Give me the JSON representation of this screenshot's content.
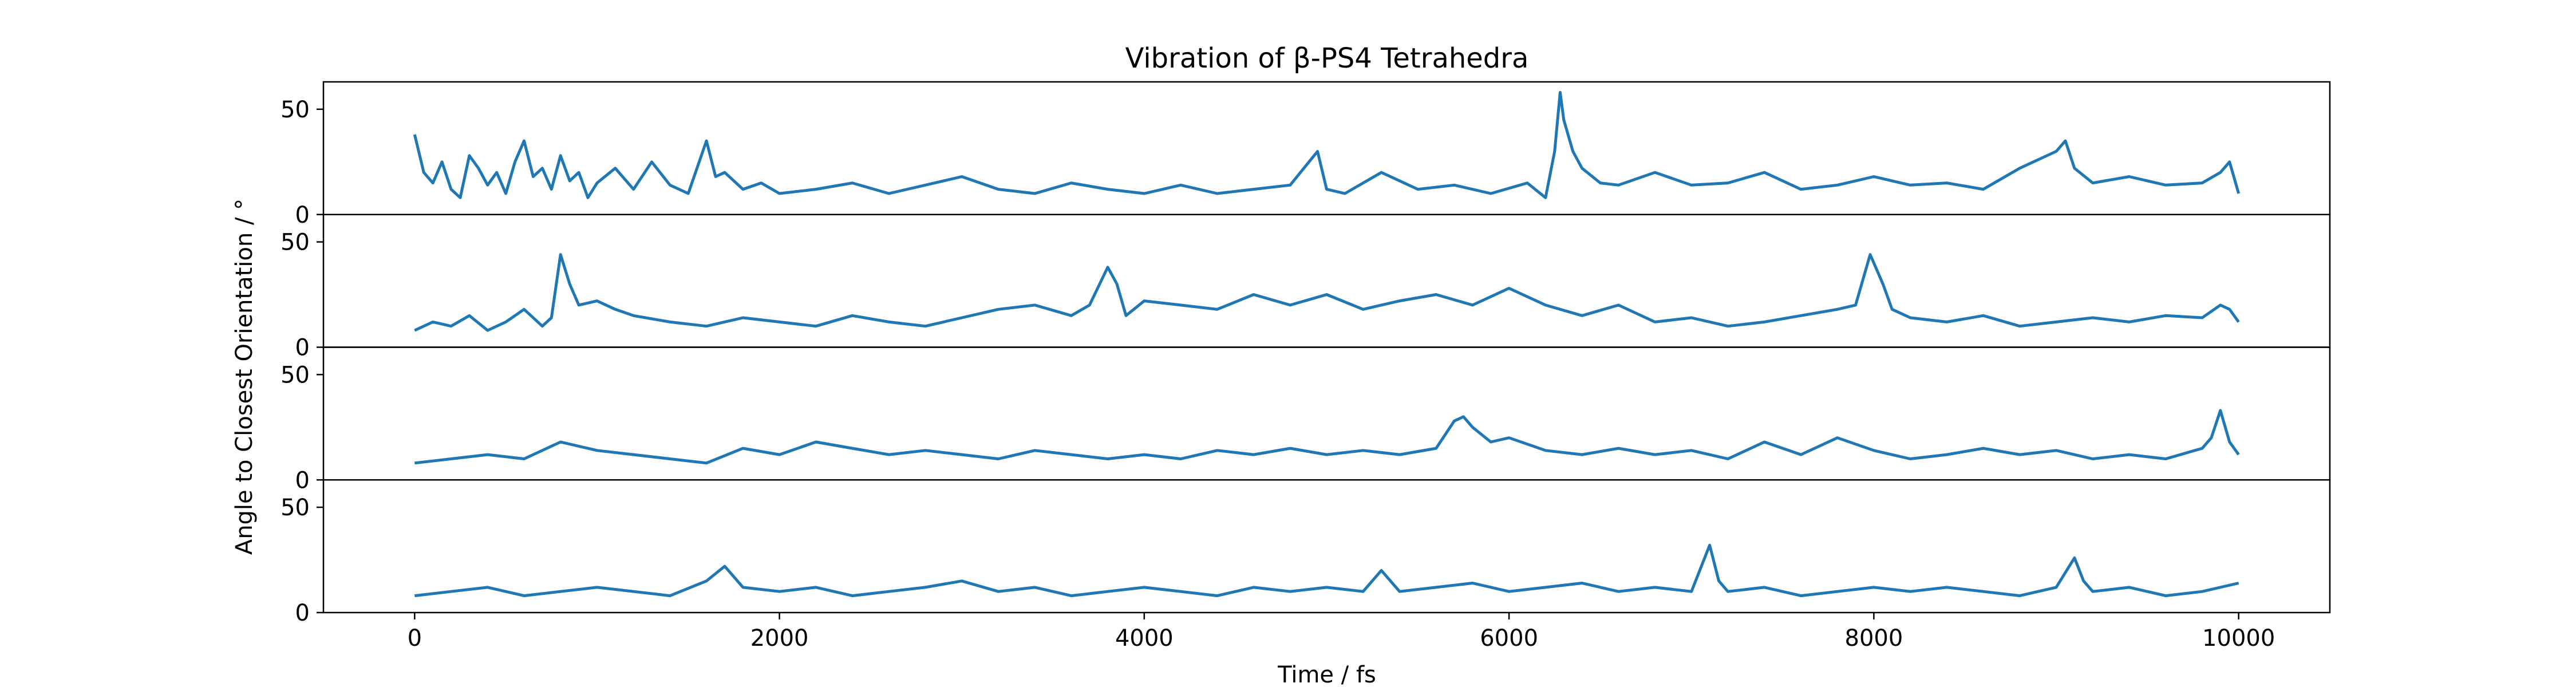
{
  "chart_data": {
    "type": "line",
    "title": "Vibration of β-PS4 Tetrahedra",
    "xlabel": "Time / fs",
    "ylabel": "Angle to Closest Orientation / °",
    "xlim": [
      -500,
      10500
    ],
    "ylim": [
      0,
      63
    ],
    "x_ticks": [
      0,
      2000,
      4000,
      6000,
      8000,
      10000
    ],
    "x_tick_labels": [
      "0",
      "2000",
      "4000",
      "6000",
      "8000",
      "10000"
    ],
    "y_ticks": [
      0,
      50
    ],
    "y_tick_labels": [
      "0",
      "50"
    ],
    "grid": false,
    "line_color": "#1f77b4",
    "subplots": 4,
    "series": [
      {
        "x": [
          0,
          50,
          100,
          150,
          200,
          250,
          300,
          350,
          400,
          450,
          500,
          550,
          600,
          650,
          700,
          750,
          800,
          850,
          900,
          950,
          1000,
          1100,
          1200,
          1300,
          1400,
          1500,
          1600,
          1650,
          1700,
          1800,
          1900,
          2000,
          2200,
          2400,
          2600,
          2800,
          3000,
          3200,
          3400,
          3600,
          3800,
          4000,
          4200,
          4400,
          4600,
          4800,
          4950,
          5000,
          5100,
          5300,
          5500,
          5700,
          5900,
          6100,
          6200,
          6250,
          6280,
          6300,
          6350,
          6400,
          6500,
          6600,
          6800,
          7000,
          7200,
          7400,
          7600,
          7800,
          8000,
          8200,
          8400,
          8600,
          8800,
          9000,
          9050,
          9100,
          9200,
          9400,
          9600,
          9800,
          9900,
          9950,
          10000
        ],
        "values": [
          38,
          20,
          15,
          25,
          12,
          8,
          28,
          22,
          14,
          20,
          10,
          25,
          35,
          18,
          22,
          12,
          28,
          16,
          20,
          8,
          15,
          22,
          12,
          25,
          14,
          10,
          35,
          18,
          20,
          12,
          15,
          10,
          12,
          15,
          10,
          14,
          18,
          12,
          10,
          15,
          12,
          10,
          14,
          10,
          12,
          14,
          30,
          12,
          10,
          20,
          12,
          14,
          10,
          15,
          8,
          30,
          58,
          45,
          30,
          22,
          15,
          14,
          20,
          14,
          15,
          20,
          12,
          14,
          18,
          14,
          15,
          12,
          22,
          30,
          35,
          22,
          15,
          18,
          14,
          15,
          20,
          25,
          10
        ]
      },
      {
        "x": [
          0,
          100,
          200,
          300,
          400,
          500,
          600,
          700,
          750,
          800,
          850,
          900,
          1000,
          1100,
          1200,
          1400,
          1600,
          1800,
          2000,
          2200,
          2400,
          2600,
          2800,
          3000,
          3200,
          3400,
          3600,
          3700,
          3800,
          3850,
          3900,
          4000,
          4200,
          4400,
          4600,
          4800,
          5000,
          5200,
          5400,
          5600,
          5800,
          6000,
          6200,
          6400,
          6600,
          6800,
          7000,
          7200,
          7400,
          7600,
          7800,
          7900,
          7980,
          8050,
          8100,
          8200,
          8400,
          8600,
          8800,
          9000,
          9200,
          9400,
          9600,
          9800,
          9900,
          9950,
          10000
        ],
        "values": [
          8,
          12,
          10,
          15,
          8,
          12,
          18,
          10,
          14,
          44,
          30,
          20,
          22,
          18,
          15,
          12,
          10,
          14,
          12,
          10,
          15,
          12,
          10,
          14,
          18,
          20,
          15,
          20,
          38,
          30,
          15,
          22,
          20,
          18,
          25,
          20,
          25,
          18,
          22,
          25,
          20,
          28,
          20,
          15,
          20,
          12,
          14,
          10,
          12,
          15,
          18,
          20,
          44,
          30,
          18,
          14,
          12,
          15,
          10,
          12,
          14,
          12,
          15,
          14,
          20,
          18,
          12
        ]
      },
      {
        "x": [
          0,
          200,
          400,
          600,
          800,
          1000,
          1200,
          1400,
          1600,
          1800,
          2000,
          2200,
          2400,
          2600,
          2800,
          3000,
          3200,
          3400,
          3600,
          3800,
          4000,
          4200,
          4400,
          4600,
          4800,
          5000,
          5200,
          5400,
          5600,
          5700,
          5750,
          5800,
          5900,
          6000,
          6200,
          6400,
          6600,
          6800,
          7000,
          7200,
          7400,
          7600,
          7800,
          8000,
          8200,
          8400,
          8600,
          8800,
          9000,
          9200,
          9400,
          9600,
          9800,
          9850,
          9900,
          9950,
          10000
        ],
        "values": [
          8,
          10,
          12,
          10,
          18,
          14,
          12,
          10,
          8,
          15,
          12,
          18,
          15,
          12,
          14,
          12,
          10,
          14,
          12,
          10,
          12,
          10,
          14,
          12,
          15,
          12,
          14,
          12,
          15,
          28,
          30,
          25,
          18,
          20,
          14,
          12,
          15,
          12,
          14,
          10,
          18,
          12,
          20,
          14,
          10,
          12,
          15,
          12,
          14,
          10,
          12,
          10,
          15,
          20,
          33,
          18,
          12
        ]
      },
      {
        "x": [
          0,
          200,
          400,
          600,
          800,
          1000,
          1200,
          1400,
          1600,
          1700,
          1800,
          2000,
          2200,
          2400,
          2600,
          2800,
          3000,
          3200,
          3400,
          3600,
          3800,
          4000,
          4200,
          4400,
          4600,
          4800,
          5000,
          5200,
          5300,
          5400,
          5600,
          5800,
          6000,
          6200,
          6400,
          6600,
          6800,
          7000,
          7100,
          7150,
          7200,
          7400,
          7600,
          7800,
          8000,
          8200,
          8400,
          8600,
          8800,
          9000,
          9100,
          9150,
          9200,
          9400,
          9600,
          9800,
          10000
        ],
        "values": [
          8,
          10,
          12,
          8,
          10,
          12,
          10,
          8,
          15,
          22,
          12,
          10,
          12,
          8,
          10,
          12,
          15,
          10,
          12,
          8,
          10,
          12,
          10,
          8,
          12,
          10,
          12,
          10,
          20,
          10,
          12,
          14,
          10,
          12,
          14,
          10,
          12,
          10,
          32,
          15,
          10,
          12,
          8,
          10,
          12,
          10,
          12,
          10,
          8,
          12,
          26,
          15,
          10,
          12,
          8,
          10,
          14
        ]
      }
    ]
  }
}
